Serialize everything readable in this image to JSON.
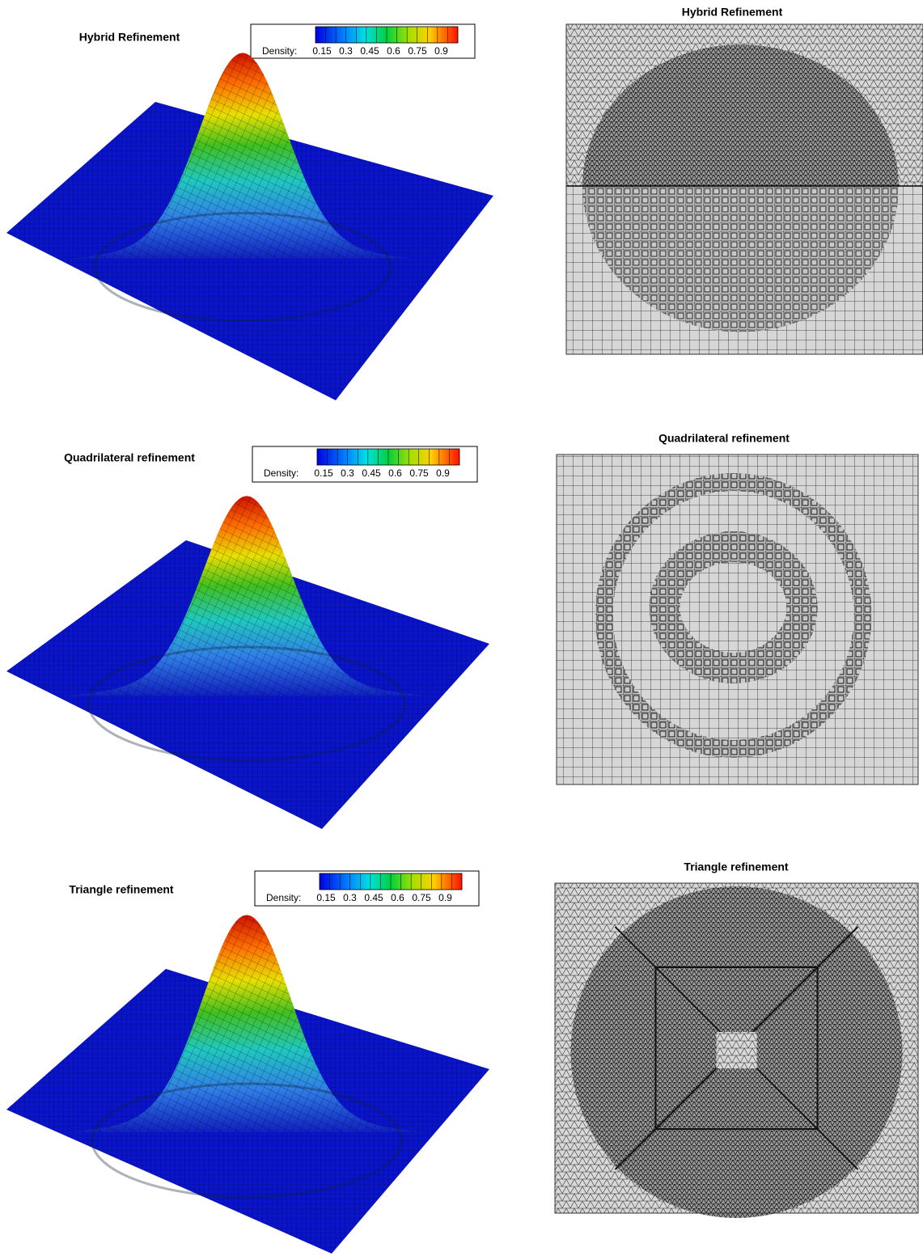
{
  "rows": [
    {
      "surface_title": "Hybrid Refinement",
      "colorbar": {
        "label": "Density:",
        "ticks": [
          0.15,
          0.3,
          0.45,
          0.6,
          0.75,
          0.9
        ]
      },
      "mesh_title": "Hybrid Refinement"
    },
    {
      "surface_title": "Quadrilateral refinement",
      "colorbar": {
        "label": "Density:",
        "ticks": [
          0.15,
          0.3,
          0.45,
          0.6,
          0.75,
          0.9
        ]
      },
      "mesh_title": "Quadrilateral refinement"
    },
    {
      "surface_title": "Triangle refinement",
      "colorbar": {
        "label": "Density:",
        "ticks": [
          0.15,
          0.3,
          0.45,
          0.6,
          0.75,
          0.9
        ]
      },
      "mesh_title": "Triangle refinement"
    }
  ]
}
